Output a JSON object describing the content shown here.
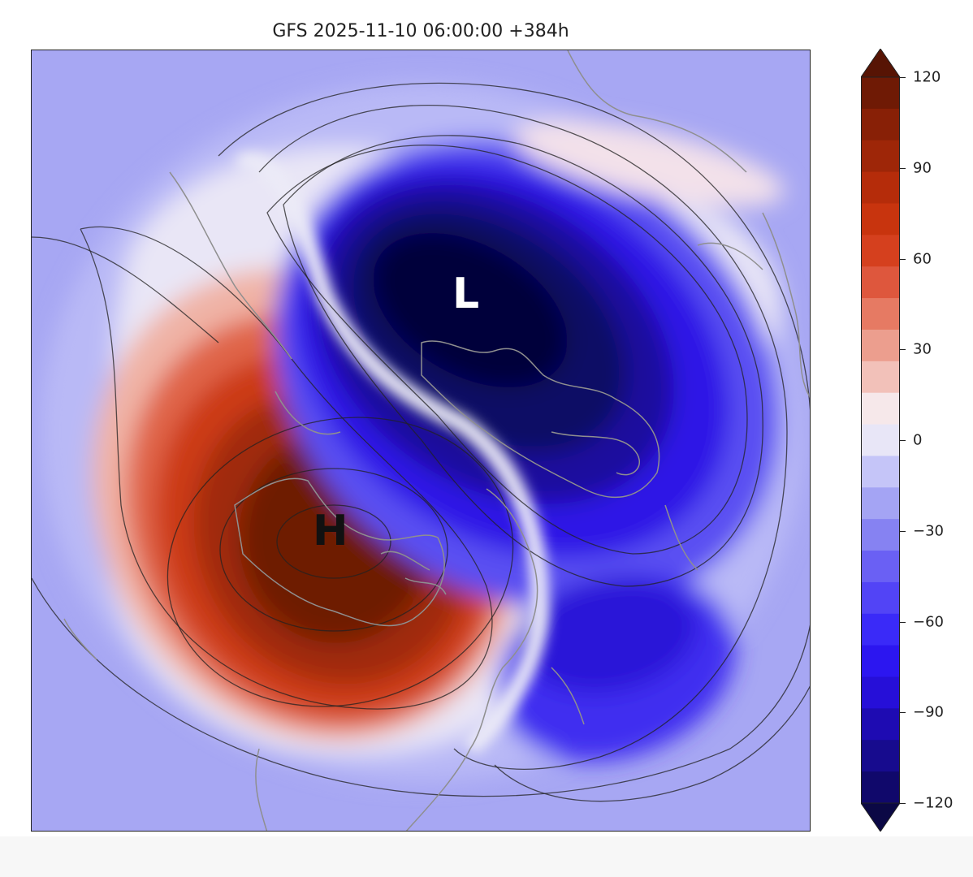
{
  "title": "GFS 2025-11-10 06:00:00 +384h",
  "map": {
    "high_label": "H",
    "low_label": "L",
    "colors": {
      "warm_core": "#6b1a06",
      "warm_mid": "#c8340e",
      "neutral": "#f1e8ef",
      "cool_light": "#9c9cf6",
      "cool_mid": "#3a2ae6",
      "cold_core": "#07053f"
    }
  },
  "colorbar": {
    "min": -120,
    "max": 120,
    "ticks": [
      "120",
      "90",
      "60",
      "30",
      "0",
      "−30",
      "−60",
      "−90",
      "−120"
    ],
    "levels": [
      {
        "value": -120,
        "color": "#0b0845"
      },
      {
        "value": -110,
        "color": "#10086b"
      },
      {
        "value": -100,
        "color": "#170b8e"
      },
      {
        "value": -90,
        "color": "#1e0bb2"
      },
      {
        "value": -80,
        "color": "#260fd8"
      },
      {
        "value": -70,
        "color": "#2c16f0"
      },
      {
        "value": -60,
        "color": "#3a2af8"
      },
      {
        "value": -50,
        "color": "#5244f6"
      },
      {
        "value": -40,
        "color": "#6a60f4"
      },
      {
        "value": -30,
        "color": "#8682f2"
      },
      {
        "value": -20,
        "color": "#a4a4f4"
      },
      {
        "value": -10,
        "color": "#c5c5f8"
      },
      {
        "value": 0,
        "color": "#e8e6f7"
      },
      {
        "value": 10,
        "color": "#f6e8ea"
      },
      {
        "value": 20,
        "color": "#f2c1b9"
      },
      {
        "value": 30,
        "color": "#ec9e8e"
      },
      {
        "value": 40,
        "color": "#e67a63"
      },
      {
        "value": 50,
        "color": "#de573d"
      },
      {
        "value": 60,
        "color": "#d5401e"
      },
      {
        "value": 70,
        "color": "#c8340e"
      },
      {
        "value": 80,
        "color": "#b52c0a"
      },
      {
        "value": 90,
        "color": "#9e2608"
      },
      {
        "value": 100,
        "color": "#882006"
      },
      {
        "value": 110,
        "color": "#6f1a05"
      },
      {
        "value": 120,
        "color": "#571404"
      }
    ]
  }
}
